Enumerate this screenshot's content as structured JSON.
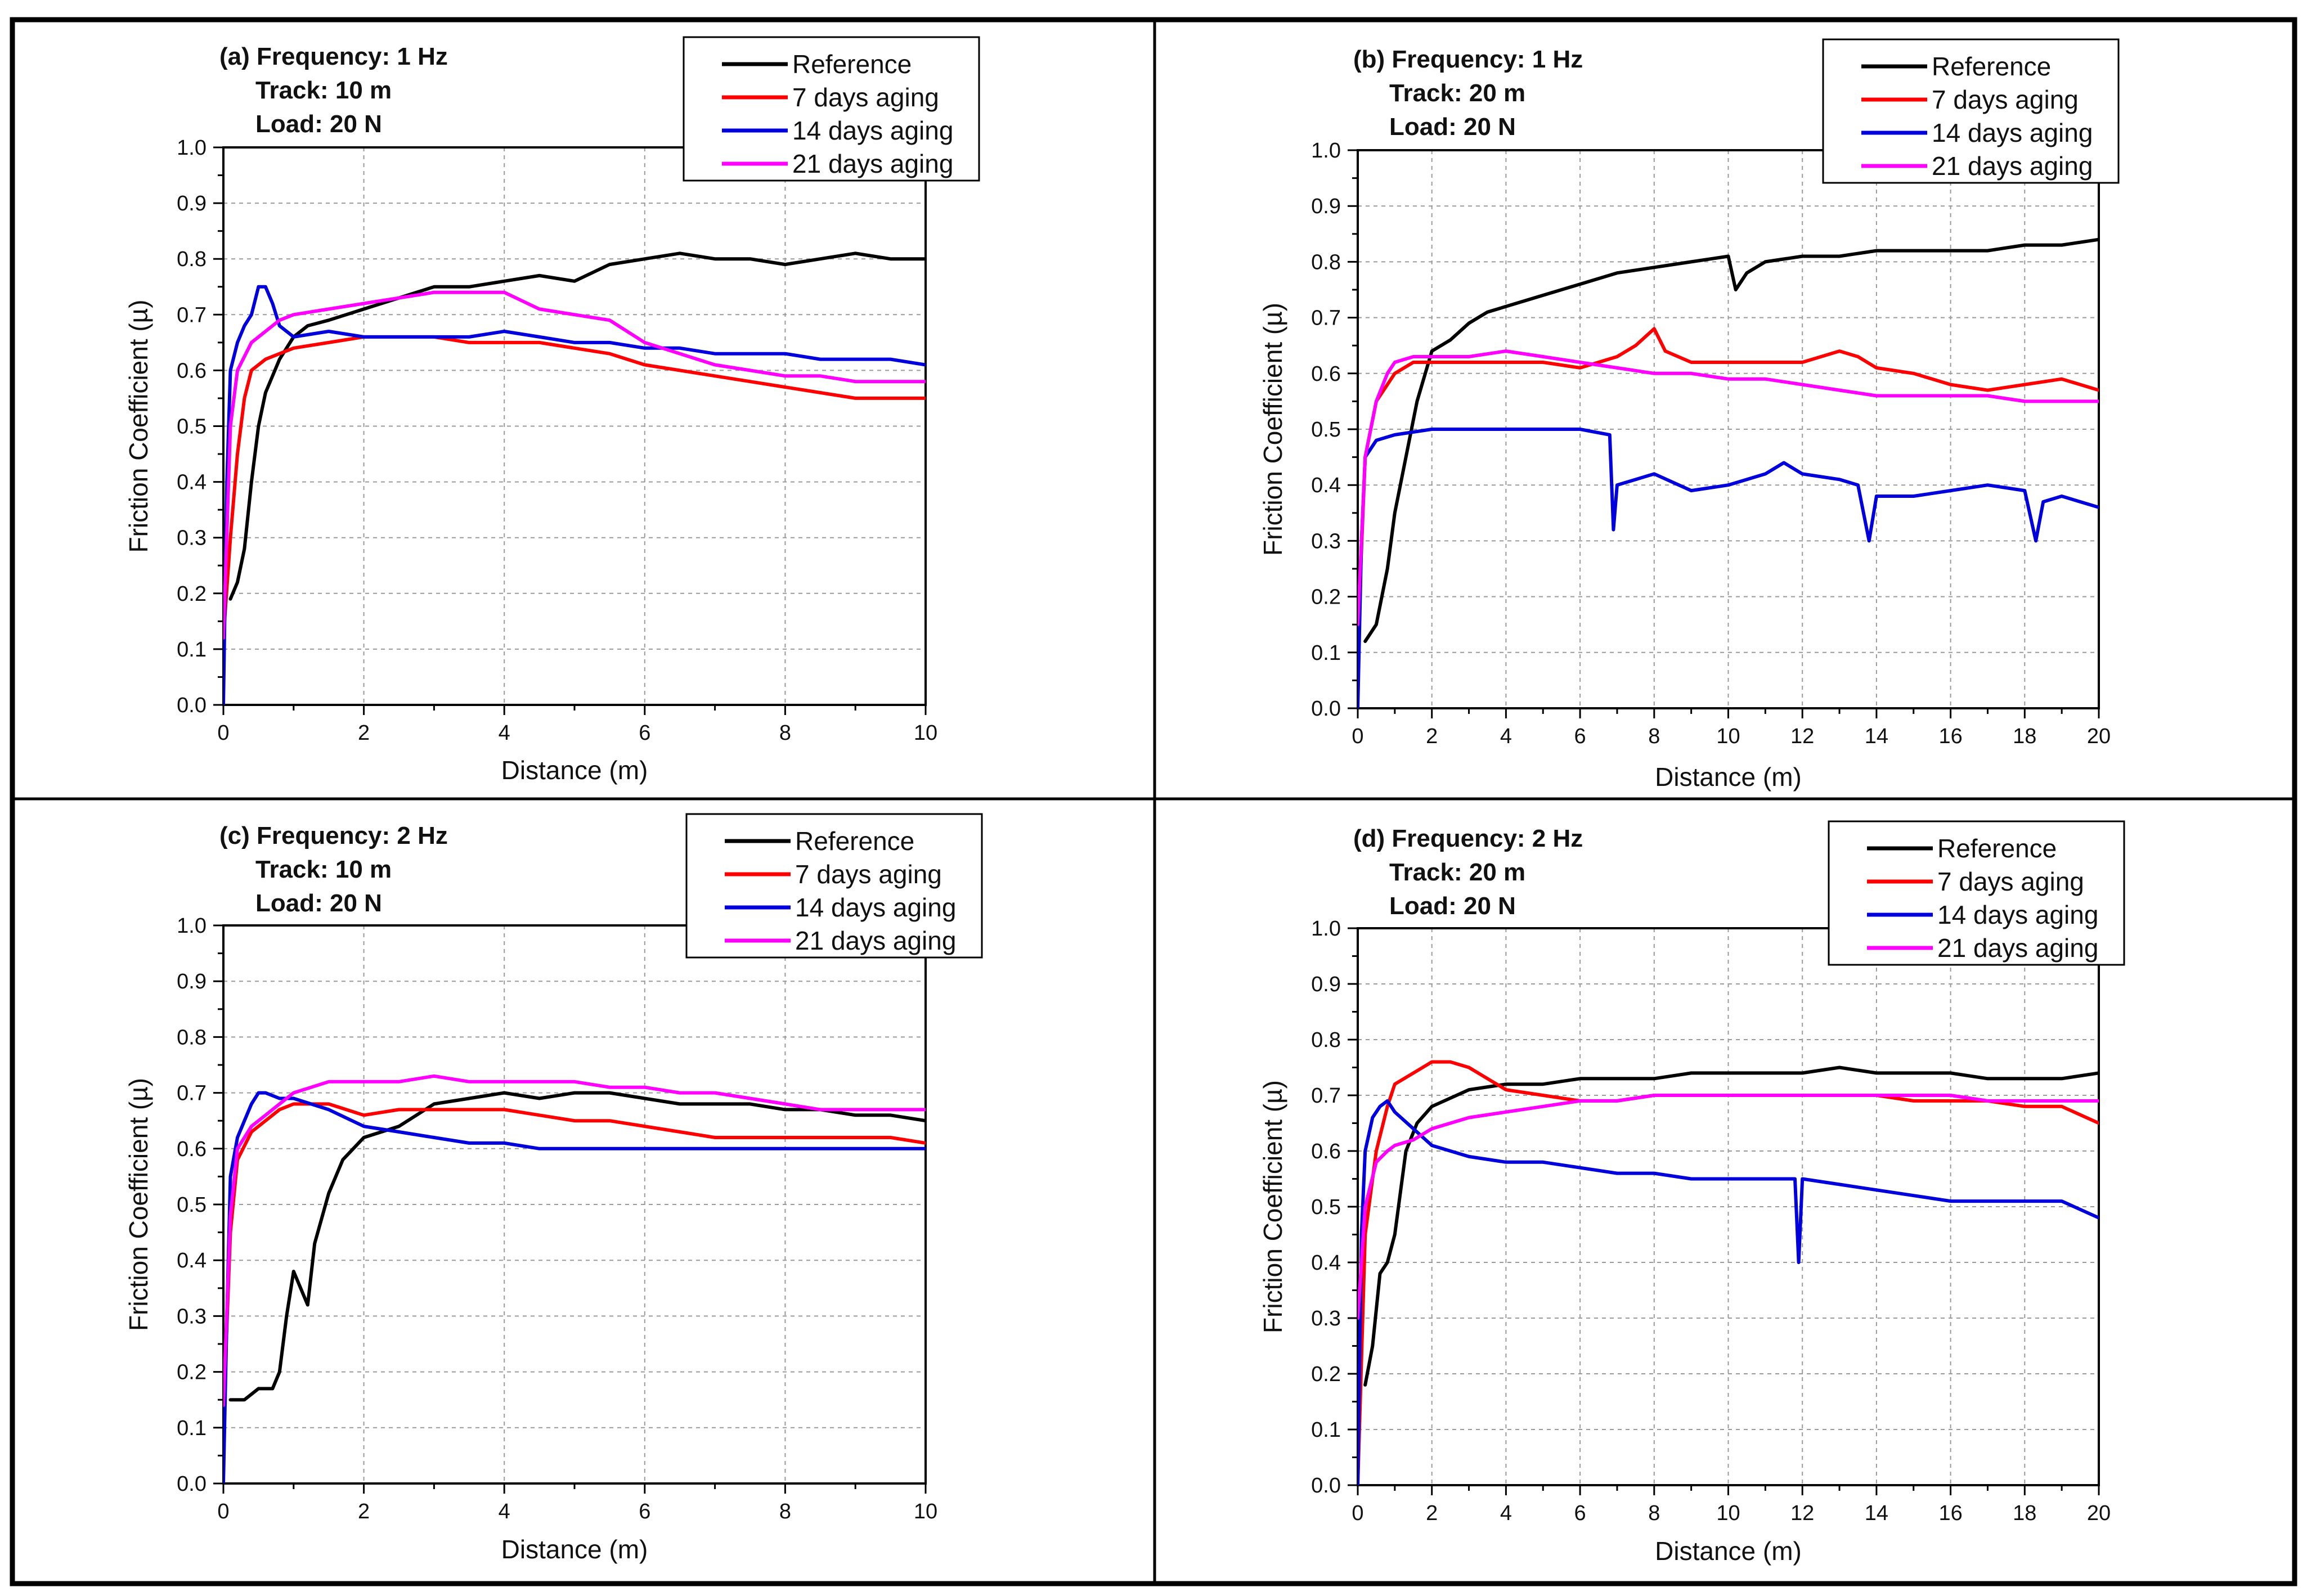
{
  "chart_data": [
    {
      "type": "line",
      "panel": "(a)",
      "title_lines": [
        "(a) Frequency: 1 Hz",
        "Track: 10 m",
        "Load: 20 N"
      ],
      "xlabel": "Distance (m)",
      "ylabel": "Friction Coefficient (µ)",
      "xlim": [
        0,
        10
      ],
      "ylim": [
        0,
        1.0
      ],
      "xticks": [
        "0",
        "2",
        "4",
        "6",
        "8",
        "10"
      ],
      "yticks": [
        "0.0",
        "0.1",
        "0.2",
        "0.3",
        "0.4",
        "0.5",
        "0.6",
        "0.7",
        "0.8",
        "0.9",
        "1.0"
      ],
      "grid": true,
      "legend": "top-right",
      "series": [
        {
          "name": "Reference",
          "color": "#000000",
          "x": [
            0.1,
            0.2,
            0.3,
            0.4,
            0.5,
            0.6,
            0.8,
            1,
            1.2,
            1.5,
            2,
            2.5,
            3,
            3.5,
            4,
            4.5,
            5,
            5.5,
            6,
            6.5,
            7,
            7.5,
            8,
            8.5,
            9,
            9.5,
            10
          ],
          "y": [
            0.19,
            0.22,
            0.28,
            0.4,
            0.5,
            0.56,
            0.62,
            0.66,
            0.68,
            0.69,
            0.71,
            0.73,
            0.75,
            0.75,
            0.76,
            0.77,
            0.76,
            0.79,
            0.8,
            0.81,
            0.8,
            0.8,
            0.79,
            0.8,
            0.81,
            0.8,
            0.8
          ]
        },
        {
          "name": "7 days aging",
          "color": "#ff0000",
          "x": [
            0,
            0.1,
            0.2,
            0.3,
            0.4,
            0.6,
            0.8,
            1,
            1.5,
            2,
            2.5,
            3,
            3.5,
            4,
            4.5,
            5,
            5.5,
            6,
            6.5,
            7,
            7.5,
            8,
            8.5,
            9,
            9.5,
            10
          ],
          "y": [
            0.12,
            0.3,
            0.45,
            0.55,
            0.6,
            0.62,
            0.63,
            0.64,
            0.65,
            0.66,
            0.66,
            0.66,
            0.65,
            0.65,
            0.65,
            0.64,
            0.63,
            0.61,
            0.6,
            0.59,
            0.58,
            0.57,
            0.56,
            0.55,
            0.55,
            0.55
          ]
        },
        {
          "name": "14 days aging",
          "color": "#0000dd",
          "x": [
            0,
            0.05,
            0.1,
            0.2,
            0.3,
            0.4,
            0.5,
            0.6,
            0.7,
            0.8,
            1,
            1.5,
            2,
            2.5,
            3,
            3.5,
            4,
            4.5,
            5,
            5.5,
            6,
            6.5,
            7,
            7.5,
            8,
            8.5,
            9,
            9.5,
            10
          ],
          "y": [
            0.0,
            0.4,
            0.6,
            0.65,
            0.68,
            0.7,
            0.75,
            0.75,
            0.72,
            0.68,
            0.66,
            0.67,
            0.66,
            0.66,
            0.66,
            0.66,
            0.67,
            0.66,
            0.65,
            0.65,
            0.64,
            0.64,
            0.63,
            0.63,
            0.63,
            0.62,
            0.62,
            0.62,
            0.61
          ]
        },
        {
          "name": "21 days aging",
          "color": "#ff00ff",
          "x": [
            0,
            0.1,
            0.2,
            0.4,
            0.6,
            0.8,
            1,
            1.5,
            2,
            2.5,
            3,
            3.5,
            4,
            4.5,
            5,
            5.5,
            6,
            6.5,
            7,
            7.5,
            8,
            8.5,
            9,
            9.5,
            10
          ],
          "y": [
            0.12,
            0.5,
            0.6,
            0.65,
            0.67,
            0.69,
            0.7,
            0.71,
            0.72,
            0.73,
            0.74,
            0.74,
            0.74,
            0.71,
            0.7,
            0.69,
            0.65,
            0.63,
            0.61,
            0.6,
            0.59,
            0.59,
            0.58,
            0.58,
            0.58
          ]
        }
      ]
    },
    {
      "type": "line",
      "panel": "(b)",
      "title_lines": [
        "(b) Frequency: 1 Hz",
        "Track: 20 m",
        "Load: 20 N"
      ],
      "xlabel": "Distance (m)",
      "ylabel": "Friction Coefficient (µ)",
      "xlim": [
        0,
        20
      ],
      "ylim": [
        0,
        1.0
      ],
      "xticks": [
        "0",
        "2",
        "4",
        "6",
        "8",
        "10",
        "12",
        "14",
        "16",
        "18",
        "20"
      ],
      "yticks": [
        "0.0",
        "0.1",
        "0.2",
        "0.3",
        "0.4",
        "0.5",
        "0.6",
        "0.7",
        "0.8",
        "0.9",
        "1.0"
      ],
      "grid": true,
      "legend": "top-right",
      "series": [
        {
          "name": "Reference",
          "color": "#000000",
          "x": [
            0.2,
            0.5,
            0.8,
            1,
            1.3,
            1.6,
            2,
            2.5,
            3,
            3.5,
            4,
            5,
            6,
            7,
            8,
            9,
            10,
            10.2,
            10.5,
            11,
            12,
            13,
            14,
            15,
            16,
            17,
            18,
            19,
            20
          ],
          "y": [
            0.12,
            0.15,
            0.25,
            0.35,
            0.45,
            0.55,
            0.64,
            0.66,
            0.69,
            0.71,
            0.72,
            0.74,
            0.76,
            0.78,
            0.79,
            0.8,
            0.81,
            0.75,
            0.78,
            0.8,
            0.81,
            0.81,
            0.82,
            0.82,
            0.82,
            0.82,
            0.83,
            0.83,
            0.84
          ]
        },
        {
          "name": "7 days aging",
          "color": "#ff0000",
          "x": [
            0,
            0.2,
            0.5,
            0.8,
            1,
            1.5,
            2,
            3,
            4,
            5,
            6,
            7,
            7.5,
            8,
            8.3,
            9,
            10,
            11,
            12,
            13,
            13.5,
            14,
            15,
            16,
            17,
            18,
            19,
            20
          ],
          "y": [
            0.12,
            0.45,
            0.55,
            0.58,
            0.6,
            0.62,
            0.62,
            0.62,
            0.62,
            0.62,
            0.61,
            0.63,
            0.65,
            0.68,
            0.64,
            0.62,
            0.62,
            0.62,
            0.62,
            0.64,
            0.63,
            0.61,
            0.6,
            0.58,
            0.57,
            0.58,
            0.59,
            0.57
          ]
        },
        {
          "name": "14 days aging",
          "color": "#0000dd",
          "x": [
            0,
            0.1,
            0.2,
            0.5,
            1,
            2,
            3,
            4,
            5,
            6,
            6.8,
            6.9,
            7,
            8,
            9,
            10,
            11,
            11.5,
            12,
            13,
            13.5,
            13.8,
            14,
            15,
            16,
            17,
            18,
            18.3,
            18.5,
            19,
            20
          ],
          "y": [
            0.0,
            0.3,
            0.45,
            0.48,
            0.49,
            0.5,
            0.5,
            0.5,
            0.5,
            0.5,
            0.49,
            0.32,
            0.4,
            0.42,
            0.39,
            0.4,
            0.42,
            0.44,
            0.42,
            0.41,
            0.4,
            0.3,
            0.38,
            0.38,
            0.39,
            0.4,
            0.39,
            0.3,
            0.37,
            0.38,
            0.36
          ]
        },
        {
          "name": "21 days aging",
          "color": "#ff00ff",
          "x": [
            0,
            0.2,
            0.5,
            0.8,
            1,
            1.5,
            2,
            3,
            4,
            5,
            6,
            7,
            8,
            9,
            10,
            11,
            12,
            13,
            14,
            15,
            16,
            17,
            18,
            19,
            20
          ],
          "y": [
            0.15,
            0.45,
            0.55,
            0.6,
            0.62,
            0.63,
            0.63,
            0.63,
            0.64,
            0.63,
            0.62,
            0.61,
            0.6,
            0.6,
            0.59,
            0.59,
            0.58,
            0.57,
            0.56,
            0.56,
            0.56,
            0.56,
            0.55,
            0.55,
            0.55
          ]
        }
      ]
    },
    {
      "type": "line",
      "panel": "(c)",
      "title_lines": [
        "(c) Frequency: 2 Hz",
        "Track: 10 m",
        "Load: 20 N"
      ],
      "xlabel": "Distance (m)",
      "ylabel": "Friction Coefficient (µ)",
      "xlim": [
        0,
        10
      ],
      "ylim": [
        0,
        1.0
      ],
      "xticks": [
        "0",
        "2",
        "4",
        "6",
        "8",
        "10"
      ],
      "yticks": [
        "0.0",
        "0.1",
        "0.2",
        "0.3",
        "0.4",
        "0.5",
        "0.6",
        "0.7",
        "0.8",
        "0.9",
        "1.0"
      ],
      "grid": true,
      "legend": "top-right",
      "series": [
        {
          "name": "Reference",
          "color": "#000000",
          "x": [
            0.1,
            0.3,
            0.5,
            0.7,
            0.8,
            0.9,
            1,
            1.1,
            1.2,
            1.3,
            1.5,
            1.7,
            2,
            2.5,
            3,
            3.5,
            4,
            4.5,
            5,
            5.5,
            6,
            6.5,
            7,
            7.5,
            8,
            8.5,
            9,
            9.5,
            10
          ],
          "y": [
            0.15,
            0.15,
            0.17,
            0.17,
            0.2,
            0.3,
            0.38,
            0.35,
            0.32,
            0.43,
            0.52,
            0.58,
            0.62,
            0.64,
            0.68,
            0.69,
            0.7,
            0.69,
            0.7,
            0.7,
            0.69,
            0.68,
            0.68,
            0.68,
            0.67,
            0.67,
            0.66,
            0.66,
            0.65
          ]
        },
        {
          "name": "7 days aging",
          "color": "#ff0000",
          "x": [
            0,
            0.1,
            0.2,
            0.4,
            0.6,
            0.8,
            1,
            1.5,
            2,
            2.5,
            3,
            3.5,
            4,
            4.5,
            5,
            5.5,
            6,
            6.5,
            7,
            7.5,
            8,
            8.5,
            9,
            9.5,
            10
          ],
          "y": [
            0.12,
            0.45,
            0.58,
            0.63,
            0.65,
            0.67,
            0.68,
            0.68,
            0.66,
            0.67,
            0.67,
            0.67,
            0.67,
            0.66,
            0.65,
            0.65,
            0.64,
            0.63,
            0.62,
            0.62,
            0.62,
            0.62,
            0.62,
            0.62,
            0.61
          ]
        },
        {
          "name": "14 days aging",
          "color": "#0000dd",
          "x": [
            0,
            0.05,
            0.1,
            0.2,
            0.3,
            0.4,
            0.5,
            0.6,
            0.8,
            1,
            1.5,
            2,
            2.5,
            3,
            3.5,
            4,
            4.5,
            5,
            5.5,
            6,
            6.5,
            7,
            7.5,
            8,
            8.5,
            9,
            9.5,
            10
          ],
          "y": [
            0.0,
            0.3,
            0.55,
            0.62,
            0.65,
            0.68,
            0.7,
            0.7,
            0.69,
            0.69,
            0.67,
            0.64,
            0.63,
            0.62,
            0.61,
            0.61,
            0.6,
            0.6,
            0.6,
            0.6,
            0.6,
            0.6,
            0.6,
            0.6,
            0.6,
            0.6,
            0.6,
            0.6
          ]
        },
        {
          "name": "21 days aging",
          "color": "#ff00ff",
          "x": [
            0,
            0.1,
            0.2,
            0.4,
            0.6,
            0.8,
            1,
            1.5,
            2,
            2.5,
            3,
            3.5,
            4,
            4.5,
            5,
            5.5,
            6,
            6.5,
            7,
            7.5,
            8,
            8.5,
            9,
            9.5,
            10
          ],
          "y": [
            0.14,
            0.48,
            0.6,
            0.64,
            0.66,
            0.68,
            0.7,
            0.72,
            0.72,
            0.72,
            0.73,
            0.72,
            0.72,
            0.72,
            0.72,
            0.71,
            0.71,
            0.7,
            0.7,
            0.69,
            0.68,
            0.67,
            0.67,
            0.67,
            0.67
          ]
        }
      ]
    },
    {
      "type": "line",
      "panel": "(d)",
      "title_lines": [
        "(d) Frequency: 2 Hz",
        "Track: 20 m",
        "Load: 20 N"
      ],
      "xlabel": "Distance (m)",
      "ylabel": "Friction Coefficient (µ)",
      "xlim": [
        0,
        20
      ],
      "ylim": [
        0,
        1.0
      ],
      "xticks": [
        "0",
        "2",
        "4",
        "6",
        "8",
        "10",
        "12",
        "14",
        "16",
        "18",
        "20"
      ],
      "yticks": [
        "0.0",
        "0.1",
        "0.2",
        "0.3",
        "0.4",
        "0.5",
        "0.6",
        "0.7",
        "0.8",
        "0.9",
        "1.0"
      ],
      "grid": true,
      "legend": "top-right",
      "series": [
        {
          "name": "Reference",
          "color": "#000000",
          "x": [
            0.2,
            0.4,
            0.6,
            0.8,
            1,
            1.3,
            1.6,
            2,
            3,
            4,
            5,
            6,
            7,
            8,
            9,
            10,
            11,
            12,
            13,
            14,
            15,
            16,
            17,
            18,
            19,
            20
          ],
          "y": [
            0.18,
            0.25,
            0.38,
            0.4,
            0.45,
            0.6,
            0.65,
            0.68,
            0.71,
            0.72,
            0.72,
            0.73,
            0.73,
            0.73,
            0.74,
            0.74,
            0.74,
            0.74,
            0.75,
            0.74,
            0.74,
            0.74,
            0.73,
            0.73,
            0.73,
            0.74
          ]
        },
        {
          "name": "7 days aging",
          "color": "#ff0000",
          "x": [
            0,
            0.2,
            0.5,
            0.8,
            1,
            1.5,
            2,
            2.5,
            3,
            3.5,
            4,
            5,
            6,
            7,
            8,
            9,
            10,
            11,
            12,
            13,
            14,
            15,
            16,
            17,
            18,
            19,
            20
          ],
          "y": [
            0.0,
            0.45,
            0.6,
            0.68,
            0.72,
            0.74,
            0.76,
            0.76,
            0.75,
            0.73,
            0.71,
            0.7,
            0.69,
            0.69,
            0.7,
            0.7,
            0.7,
            0.7,
            0.7,
            0.7,
            0.7,
            0.69,
            0.69,
            0.69,
            0.68,
            0.68,
            0.65
          ]
        },
        {
          "name": "14 days aging",
          "color": "#0000dd",
          "x": [
            0,
            0.1,
            0.2,
            0.4,
            0.6,
            0.8,
            1,
            1.5,
            2,
            3,
            4,
            5,
            6,
            7,
            8,
            9,
            10,
            11,
            11.8,
            11.9,
            12,
            13,
            14,
            15,
            16,
            17,
            18,
            19,
            20
          ],
          "y": [
            0.0,
            0.45,
            0.6,
            0.66,
            0.68,
            0.69,
            0.67,
            0.64,
            0.61,
            0.59,
            0.58,
            0.58,
            0.57,
            0.56,
            0.56,
            0.55,
            0.55,
            0.55,
            0.55,
            0.4,
            0.55,
            0.54,
            0.53,
            0.52,
            0.51,
            0.51,
            0.51,
            0.51,
            0.48
          ]
        },
        {
          "name": "21 days aging",
          "color": "#ff00ff",
          "x": [
            0,
            0.2,
            0.5,
            0.8,
            1,
            1.5,
            2,
            3,
            4,
            5,
            6,
            7,
            8,
            9,
            10,
            11,
            12,
            13,
            14,
            15,
            16,
            17,
            18,
            19,
            20
          ],
          "y": [
            0.3,
            0.5,
            0.58,
            0.6,
            0.61,
            0.62,
            0.64,
            0.66,
            0.67,
            0.68,
            0.69,
            0.69,
            0.7,
            0.7,
            0.7,
            0.7,
            0.7,
            0.7,
            0.7,
            0.7,
            0.7,
            0.69,
            0.69,
            0.69,
            0.69
          ]
        }
      ]
    }
  ]
}
